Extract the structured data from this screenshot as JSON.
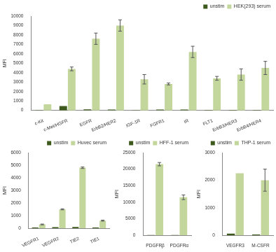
{
  "chart_data": [
    {
      "type": "bar",
      "categories": [
        "c-Kit",
        "c-Met/HGFR",
        "EGFR",
        "ErbB2/HER2",
        "IGF-1R",
        "FGFR1",
        "IR",
        "FLT1",
        "ErbB3/HER3",
        "ErbB4/HER4"
      ],
      "series": [
        {
          "name": "unstim",
          "color": "#3d5a1c",
          "values": [
            30,
            450,
            100,
            80,
            30,
            80,
            80,
            50,
            50,
            50
          ]
        },
        {
          "name": "HEK(293) serum",
          "color": "#c3d69b",
          "values": [
            650,
            4400,
            7600,
            9000,
            3300,
            2800,
            6200,
            3400,
            3800,
            4500
          ],
          "errors": [
            0,
            200,
            600,
            600,
            500,
            100,
            600,
            200,
            600,
            700
          ]
        }
      ],
      "y_label": "MFI",
      "ylim": [
        0,
        10000
      ],
      "yticks": [
        0,
        1000,
        2000,
        3000,
        4000,
        5000,
        6000,
        7000,
        8000,
        9000,
        10000
      ],
      "grid": false,
      "legend": "upper right"
    },
    {
      "type": "bar",
      "categories": [
        "VEGFR1",
        "VEGFR2",
        "TIE2",
        "TIE1"
      ],
      "series": [
        {
          "name": "unstim",
          "color": "#3d5a1c",
          "values": [
            50,
            80,
            100,
            50
          ]
        },
        {
          "name": "Huvec serum",
          "color": "#c3d69b",
          "values": [
            300,
            1500,
            4800,
            600
          ],
          "errors": [
            30,
            40,
            60,
            40
          ]
        }
      ],
      "y_label": "MFI",
      "ylim": [
        0,
        6000
      ],
      "yticks": [
        0,
        1000,
        2000,
        3000,
        4000,
        5000,
        6000
      ],
      "grid": false,
      "legend": "upper right"
    },
    {
      "type": "bar",
      "categories": [
        "PDGFRβ",
        "PDGFRα"
      ],
      "series": [
        {
          "name": "unstim",
          "color": "#3d5a1c",
          "values": [
            100,
            100
          ]
        },
        {
          "name": "HFF-1 serum",
          "color": "#c3d69b",
          "values": [
            21500,
            11500
          ],
          "errors": [
            500,
            700
          ]
        }
      ],
      "y_label": "MFI",
      "ylim": [
        0,
        25000
      ],
      "yticks": [
        0,
        5000,
        10000,
        15000,
        20000,
        25000
      ],
      "grid": false,
      "legend": "upper right"
    },
    {
      "type": "bar",
      "categories": [
        "VEGFR3",
        "M-CSFR"
      ],
      "series": [
        {
          "name": "unstim",
          "color": "#3d5a1c",
          "values": [
            60,
            30
          ]
        },
        {
          "name": "THP-1 serum",
          "color": "#c3d69b",
          "values": [
            2250,
            2000
          ],
          "errors": [
            0,
            400
          ]
        }
      ],
      "y_label": "MFI",
      "ylim": [
        0,
        3000
      ],
      "yticks": [
        0,
        1000,
        2000,
        3000
      ],
      "grid": false,
      "legend": "upper right"
    }
  ]
}
